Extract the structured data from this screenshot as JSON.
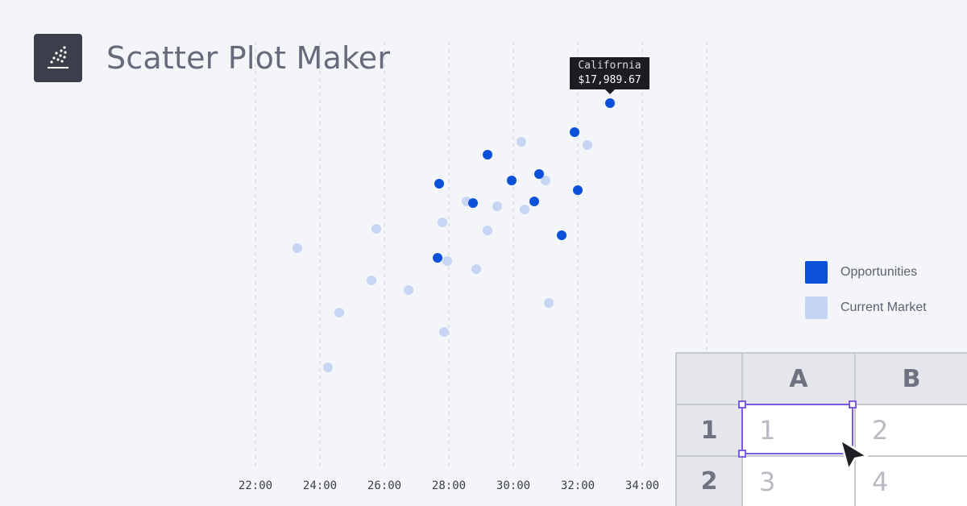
{
  "header": {
    "title": "Scatter Plot Maker",
    "logo_icon": "scatter-logo-icon"
  },
  "tooltip": {
    "name": "California",
    "value": "$17,989.67"
  },
  "legend": {
    "items": [
      {
        "label": "Opportunities",
        "color": "#0b50d8"
      },
      {
        "label": "Current Market",
        "color": "#c6d5f4"
      }
    ]
  },
  "spreadsheet": {
    "columns": [
      "A",
      "B"
    ],
    "rows": [
      {
        "label": "1",
        "cells": [
          "1",
          "2"
        ]
      },
      {
        "label": "2",
        "cells": [
          "3",
          "4"
        ]
      }
    ],
    "selection_color": "#7b5ce0"
  },
  "chart_data": {
    "type": "scatter",
    "title": "",
    "xlabel": "",
    "ylabel": "",
    "x_ticks": [
      "22:00",
      "24:00",
      "26:00",
      "28:00",
      "30:00",
      "32:00",
      "34:00"
    ],
    "xlim": [
      21,
      35
    ],
    "grid": "vertical dashed",
    "legend_position": "right",
    "series": [
      {
        "name": "Opportunities",
        "color": "#0b50d8",
        "points": [
          [
            33.0,
            12.0
          ],
          [
            31.9,
            11.1
          ],
          [
            29.2,
            10.4
          ],
          [
            30.8,
            9.8
          ],
          [
            29.95,
            9.6
          ],
          [
            27.7,
            9.5
          ],
          [
            32.0,
            9.3
          ],
          [
            28.75,
            8.9
          ],
          [
            30.65,
            8.95
          ],
          [
            31.5,
            7.9
          ],
          [
            27.65,
            7.2
          ]
        ]
      },
      {
        "name": "Current Market",
        "color": "#c6d5f4",
        "points": [
          [
            30.25,
            10.8
          ],
          [
            32.3,
            10.7
          ],
          [
            31.0,
            9.6
          ],
          [
            28.55,
            8.95
          ],
          [
            29.5,
            8.8
          ],
          [
            30.35,
            8.7
          ],
          [
            27.8,
            8.3
          ],
          [
            25.75,
            8.1
          ],
          [
            29.2,
            8.05
          ],
          [
            23.3,
            7.5
          ],
          [
            27.95,
            7.1
          ],
          [
            28.85,
            6.85
          ],
          [
            25.6,
            6.5
          ],
          [
            26.75,
            6.2
          ],
          [
            31.1,
            5.8
          ],
          [
            24.6,
            5.5
          ],
          [
            27.85,
            4.9
          ],
          [
            24.25,
            3.8
          ]
        ]
      }
    ]
  }
}
